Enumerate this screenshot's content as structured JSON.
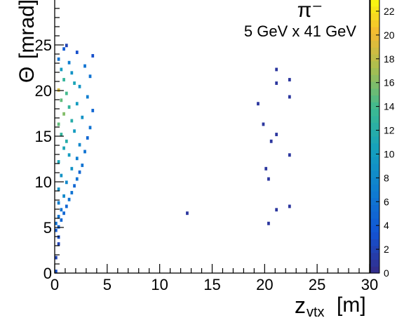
{
  "chart_data": {
    "type": "heatmap",
    "title": "π⁻",
    "subtitle": "5 GeV x 41 GeV",
    "xlabel": "z",
    "xlabel_sub": "vtx",
    "xlabel_unit": "[m]",
    "ylabel": "Θ",
    "ylabel_unit": "[mrad]",
    "xlim": [
      0,
      30
    ],
    "ylim": [
      0,
      30
    ],
    "x_ticks": [
      0,
      5,
      10,
      15,
      20,
      25,
      30
    ],
    "y_ticks": [
      0,
      5,
      10,
      15,
      20,
      25
    ],
    "colorbar": {
      "min": 0,
      "max": 23,
      "ticks": [
        0,
        2,
        4,
        6,
        8,
        10,
        12,
        14,
        16,
        18,
        20,
        22
      ],
      "palette": "kBird"
    },
    "bin_width": [
      0.25,
      0.375
    ],
    "bins": [
      {
        "x": 0.125,
        "y": 0.19,
        "v": 3
      },
      {
        "x": 0.125,
        "y": 1.69,
        "v": 2
      },
      {
        "x": 0.375,
        "y": 3.19,
        "v": 2
      },
      {
        "x": 0.375,
        "y": 3.94,
        "v": 3
      },
      {
        "x": 0.125,
        "y": 4.69,
        "v": 4
      },
      {
        "x": 0.375,
        "y": 5.06,
        "v": 5
      },
      {
        "x": 0.125,
        "y": 5.44,
        "v": 6
      },
      {
        "x": 0.625,
        "y": 5.81,
        "v": 5
      },
      {
        "x": 0.375,
        "y": 6.19,
        "v": 6
      },
      {
        "x": 0.875,
        "y": 6.56,
        "v": 5
      },
      {
        "x": 0.625,
        "y": 6.94,
        "v": 6
      },
      {
        "x": 1.125,
        "y": 7.31,
        "v": 5
      },
      {
        "x": 0.375,
        "y": 7.69,
        "v": 7
      },
      {
        "x": 1.375,
        "y": 8.06,
        "v": 6
      },
      {
        "x": 0.875,
        "y": 8.44,
        "v": 8
      },
      {
        "x": 1.625,
        "y": 8.81,
        "v": 6
      },
      {
        "x": 0.375,
        "y": 9.19,
        "v": 9
      },
      {
        "x": 1.875,
        "y": 9.56,
        "v": 5
      },
      {
        "x": 1.125,
        "y": 9.94,
        "v": 8
      },
      {
        "x": 2.125,
        "y": 10.31,
        "v": 6
      },
      {
        "x": 0.625,
        "y": 10.69,
        "v": 9
      },
      {
        "x": 2.375,
        "y": 11.06,
        "v": 5
      },
      {
        "x": 1.625,
        "y": 11.44,
        "v": 9
      },
      {
        "x": 2.625,
        "y": 11.81,
        "v": 6
      },
      {
        "x": 0.375,
        "y": 12.19,
        "v": 11
      },
      {
        "x": 2.125,
        "y": 12.56,
        "v": 7
      },
      {
        "x": 1.375,
        "y": 12.94,
        "v": 10
      },
      {
        "x": 2.875,
        "y": 13.31,
        "v": 6
      },
      {
        "x": 0.875,
        "y": 13.69,
        "v": 11
      },
      {
        "x": 2.375,
        "y": 14.06,
        "v": 8
      },
      {
        "x": 1.125,
        "y": 14.44,
        "v": 12
      },
      {
        "x": 3.125,
        "y": 14.81,
        "v": 5
      },
      {
        "x": 0.625,
        "y": 15.19,
        "v": 13
      },
      {
        "x": 1.875,
        "y": 15.56,
        "v": 10
      },
      {
        "x": 3.375,
        "y": 15.94,
        "v": 6
      },
      {
        "x": 0.375,
        "y": 16.31,
        "v": 15
      },
      {
        "x": 1.625,
        "y": 16.69,
        "v": 12
      },
      {
        "x": 2.625,
        "y": 17.06,
        "v": 9
      },
      {
        "x": 0.875,
        "y": 17.44,
        "v": 16
      },
      {
        "x": 3.625,
        "y": 17.81,
        "v": 5
      },
      {
        "x": 1.375,
        "y": 18.19,
        "v": 13
      },
      {
        "x": 2.125,
        "y": 18.56,
        "v": 10
      },
      {
        "x": 0.625,
        "y": 18.94,
        "v": 15
      },
      {
        "x": 3.125,
        "y": 19.31,
        "v": 7
      },
      {
        "x": 1.125,
        "y": 19.69,
        "v": 14
      },
      {
        "x": 0.375,
        "y": 20.06,
        "v": 19
      },
      {
        "x": 2.375,
        "y": 20.44,
        "v": 9
      },
      {
        "x": 1.875,
        "y": 20.81,
        "v": 11
      },
      {
        "x": 0.875,
        "y": 21.19,
        "v": 13
      },
      {
        "x": 3.375,
        "y": 21.56,
        "v": 6
      },
      {
        "x": 1.625,
        "y": 21.94,
        "v": 9
      },
      {
        "x": 0.625,
        "y": 22.31,
        "v": 10
      },
      {
        "x": 2.875,
        "y": 22.69,
        "v": 6
      },
      {
        "x": 1.375,
        "y": 23.06,
        "v": 7
      },
      {
        "x": 0.375,
        "y": 23.44,
        "v": 6
      },
      {
        "x": 3.625,
        "y": 23.81,
        "v": 3
      },
      {
        "x": 2.125,
        "y": 24.19,
        "v": 3
      },
      {
        "x": 0.875,
        "y": 24.56,
        "v": 4
      },
      {
        "x": 1.125,
        "y": 24.94,
        "v": 2
      },
      {
        "x": 12.625,
        "y": 6.56,
        "v": 1
      },
      {
        "x": 20.375,
        "y": 5.44,
        "v": 1
      },
      {
        "x": 21.125,
        "y": 6.94,
        "v": 1
      },
      {
        "x": 22.375,
        "y": 7.31,
        "v": 1
      },
      {
        "x": 20.375,
        "y": 10.31,
        "v": 1
      },
      {
        "x": 20.125,
        "y": 11.44,
        "v": 1
      },
      {
        "x": 22.375,
        "y": 12.94,
        "v": 1
      },
      {
        "x": 20.625,
        "y": 14.44,
        "v": 1
      },
      {
        "x": 21.125,
        "y": 15.19,
        "v": 1
      },
      {
        "x": 19.875,
        "y": 16.31,
        "v": 1
      },
      {
        "x": 19.375,
        "y": 18.56,
        "v": 1
      },
      {
        "x": 22.375,
        "y": 19.31,
        "v": 1
      },
      {
        "x": 21.125,
        "y": 20.81,
        "v": 1
      },
      {
        "x": 22.375,
        "y": 21.19,
        "v": 1
      },
      {
        "x": 21.125,
        "y": 22.31,
        "v": 1
      }
    ]
  }
}
